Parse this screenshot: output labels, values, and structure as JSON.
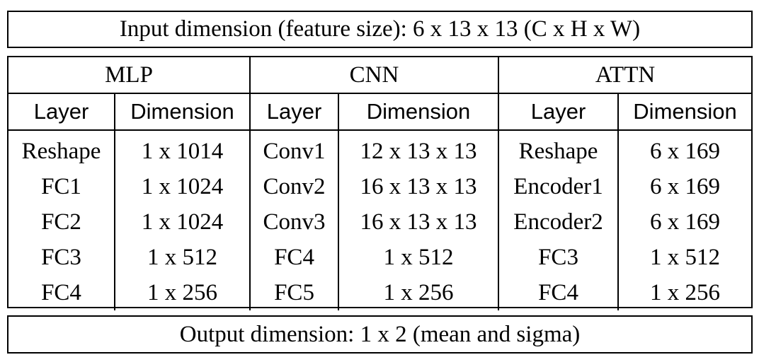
{
  "input_label": "Input dimension (feature size): 6 x 13 x 13 (C x H x W)",
  "output_label": "Output dimension: 1 x 2 (mean and sigma)",
  "groups": [
    "MLP",
    "CNN",
    "ATTN"
  ],
  "column_headers": {
    "layer": "Layer",
    "dimension": "Dimension"
  },
  "mlp": [
    {
      "layer": "Reshape",
      "dim": "1 x 1014"
    },
    {
      "layer": "FC1",
      "dim": "1 x 1024"
    },
    {
      "layer": "FC2",
      "dim": "1 x 1024"
    },
    {
      "layer": "FC3",
      "dim": "1 x 512"
    },
    {
      "layer": "FC4",
      "dim": "1 x 256"
    }
  ],
  "cnn": [
    {
      "layer": "Conv1",
      "dim": "12 x 13 x 13"
    },
    {
      "layer": "Conv2",
      "dim": "16 x 13 x 13"
    },
    {
      "layer": "Conv3",
      "dim": "16 x 13 x 13"
    },
    {
      "layer": "FC4",
      "dim": "1 x 512"
    },
    {
      "layer": "FC5",
      "dim": "1 x 256"
    }
  ],
  "attn": [
    {
      "layer": "Reshape",
      "dim": "6 x 169"
    },
    {
      "layer": "Encoder1",
      "dim": "6 x 169"
    },
    {
      "layer": "Encoder2",
      "dim": "6 x 169"
    },
    {
      "layer": "FC3",
      "dim": "1 x 512"
    },
    {
      "layer": "FC4",
      "dim": "1 x 256"
    }
  ]
}
